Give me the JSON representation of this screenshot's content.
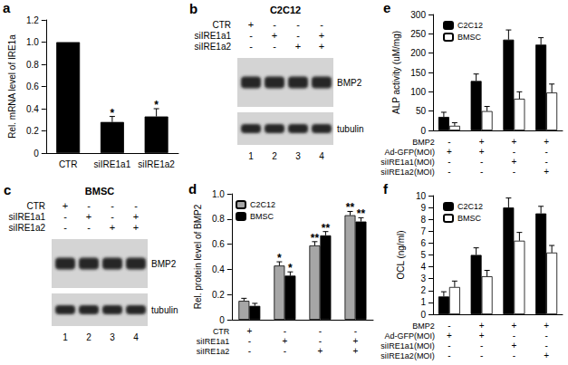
{
  "chart_data": [
    {
      "panel": "a",
      "type": "bar",
      "y_label": "Rel. mRNA level of IRE1a",
      "categories": [
        "CTR",
        "siIRE1a1",
        "siIRE1a2"
      ],
      "values": [
        1.0,
        0.28,
        0.33
      ],
      "errors": [
        0,
        0.05,
        0.07
      ],
      "annotations": [
        null,
        "*",
        "*"
      ],
      "color": "#000000",
      "ylim": [
        0,
        1.2
      ],
      "yticks": [
        0,
        0.2,
        0.4,
        0.6,
        0.8,
        {
          "value": 1,
          "label": "1.0"
        },
        1.2
      ],
      "grid": false
    },
    {
      "panel": "d",
      "type": "bar",
      "y_label": "Rel. protein level of BMP2",
      "categories": [
        null,
        null,
        null,
        null
      ],
      "conditions": [
        {
          "label": "CTR",
          "marks": [
            "+",
            "-",
            "-",
            "-"
          ]
        },
        {
          "label": "siIRE1a1",
          "marks": [
            "-",
            "+",
            "-",
            "+"
          ]
        },
        {
          "label": "siIRE1a2",
          "marks": [
            "-",
            "-",
            "+",
            "+"
          ]
        }
      ],
      "series": [
        {
          "name": "C2C12",
          "color": "#a6a6a6",
          "values": [
            0.15,
            0.43,
            0.59,
            0.83
          ],
          "errors": [
            0.02,
            0.03,
            0.03,
            0.03
          ],
          "annotations": [
            null,
            "*",
            "**",
            "**"
          ]
        },
        {
          "name": "BMSC",
          "color": "#000000",
          "values": [
            0.11,
            0.35,
            0.67,
            0.78
          ],
          "errors": [
            0.02,
            0.03,
            0.03,
            0.03
          ],
          "annotations": [
            null,
            "*",
            "**",
            "**"
          ]
        }
      ],
      "ylim": [
        0,
        1
      ],
      "yticks": [
        0,
        0.2,
        0.4,
        0.6,
        0.8,
        {
          "value": 1,
          "label": "1.0"
        }
      ],
      "grid": false,
      "legend": "upper left"
    },
    {
      "panel": "e",
      "type": "bar",
      "y_label": "ALP activity (uM/mg)",
      "categories": [
        null,
        null,
        null,
        null
      ],
      "conditions": [
        {
          "label": "BMP2",
          "marks": [
            "-",
            "+",
            "+",
            "+"
          ]
        },
        {
          "label": "Ad-GFP(MOI)",
          "marks": [
            "+",
            "+",
            "-",
            "-"
          ]
        },
        {
          "label": "siIRE1a1(MOI)",
          "marks": [
            "-",
            "-",
            "+",
            "-"
          ]
        },
        {
          "label": "siIRE1a2(MOI)",
          "marks": [
            "-",
            "-",
            "-",
            "+"
          ]
        }
      ],
      "series": [
        {
          "name": "C2C12",
          "color": "#000000",
          "values": [
            35,
            128,
            235,
            222
          ],
          "errors": [
            12,
            18,
            25,
            18
          ]
        },
        {
          "name": "BMSC",
          "color": "#ffffff",
          "values": [
            12,
            50,
            82,
            98
          ],
          "errors": [
            8,
            12,
            18,
            22
          ]
        }
      ],
      "ylim": [
        0,
        300
      ],
      "yticks": [
        0,
        50,
        100,
        150,
        200,
        250,
        300
      ],
      "grid": false,
      "legend": "upper left"
    },
    {
      "panel": "f",
      "type": "bar",
      "y_label": "OCL (ng/ml)",
      "categories": [
        null,
        null,
        null,
        null
      ],
      "conditions": [
        {
          "label": "BMP2",
          "marks": [
            "-",
            "+",
            "+",
            "+"
          ]
        },
        {
          "label": "Ad-GFP(MOI)",
          "marks": [
            "+",
            "+",
            "-",
            "-"
          ]
        },
        {
          "label": "siIRE1a1(MOI)",
          "marks": [
            "-",
            "-",
            "+",
            "-"
          ]
        },
        {
          "label": "siIRE1a2(MOI)",
          "marks": [
            "-",
            "-",
            "-",
            "+"
          ]
        }
      ],
      "series": [
        {
          "name": "C2C12",
          "color": "#000000",
          "values": [
            1.5,
            5.0,
            9.0,
            8.5
          ],
          "errors": [
            0.4,
            0.6,
            0.8,
            0.6
          ]
        },
        {
          "name": "BMSC",
          "color": "#ffffff",
          "values": [
            2.3,
            3.2,
            6.2,
            5.2
          ],
          "errors": [
            0.5,
            0.5,
            0.7,
            0.6
          ]
        }
      ],
      "ylim": [
        0,
        10
      ],
      "yticks": [
        0,
        1,
        2,
        3,
        4,
        5,
        6,
        7,
        8,
        9,
        10
      ],
      "grid": false,
      "legend": "upper left"
    }
  ],
  "blots": [
    {
      "panel": "b",
      "title": "C2C12",
      "conditions": [
        {
          "label": "CTR",
          "marks": [
            "+",
            "-",
            "-",
            "-"
          ]
        },
        {
          "label": "siIRE1a1",
          "marks": [
            "-",
            "+",
            "-",
            "+"
          ]
        },
        {
          "label": "siIRE1a2",
          "marks": [
            "-",
            "-",
            "+",
            "+"
          ]
        }
      ],
      "bands": [
        "BMP2",
        "tubulin"
      ],
      "lanes": [
        "1",
        "2",
        "3",
        "4"
      ]
    },
    {
      "panel": "c",
      "title": "BMSC",
      "conditions": [
        {
          "label": "CTR",
          "marks": [
            "+",
            "-",
            "-",
            "-"
          ]
        },
        {
          "label": "siIRE1a1",
          "marks": [
            "-",
            "+",
            "-",
            "+"
          ]
        },
        {
          "label": "siIRE1a2",
          "marks": [
            "-",
            "-",
            "+",
            "+"
          ]
        }
      ],
      "bands": [
        "BMP2",
        "tubulin"
      ],
      "lanes": [
        "1",
        "2",
        "3",
        "4"
      ]
    }
  ]
}
